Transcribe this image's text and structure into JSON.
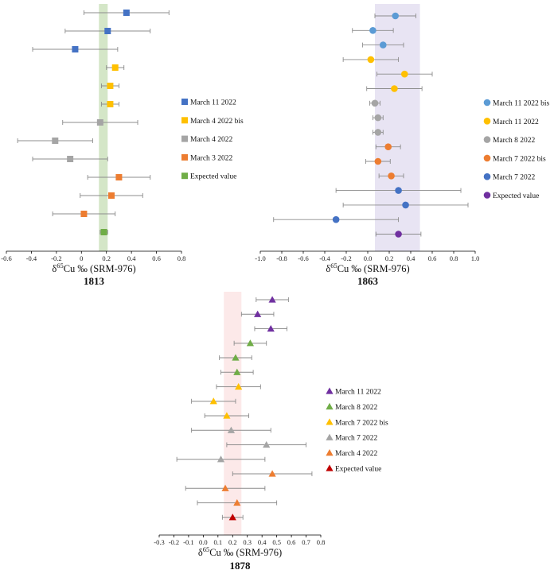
{
  "colors": {
    "blue": "#4472C4",
    "yellow": "#FFC000",
    "grey": "#A5A5A5",
    "orange": "#ED7D31",
    "green": "#70AD47",
    "purple": "#7030A0",
    "red": "#C00000",
    "errorbar": "#8C8C8C",
    "axis": "#000000"
  },
  "chart_data": [
    {
      "type": "scatter",
      "marker": "square",
      "title": "1813",
      "xlabel_prefix": "δ",
      "xlabel_sup": "65",
      "xlabel_rest": "Cu ‰ (SRM-976)",
      "xlim": [
        -0.6,
        0.8
      ],
      "xticks": [
        "-0.6",
        "-0.4",
        "-0.2",
        "0",
        "0.2",
        "0.4",
        "0.6",
        "0.8"
      ],
      "band": {
        "x0": 0.14,
        "x1": 0.21,
        "color": "#70AD47"
      },
      "legend": [
        {
          "label": "March 11 2022",
          "color": "blue"
        },
        {
          "label": "March 4 2022 bis",
          "color": "yellow"
        },
        {
          "label": "March 4 2022",
          "color": "grey"
        },
        {
          "label": "March 3 2022",
          "color": "orange"
        },
        {
          "label": "Expected value",
          "color": "green"
        }
      ],
      "points": [
        {
          "x": 0.36,
          "err": 0.34,
          "color": "blue"
        },
        {
          "x": 0.21,
          "err": 0.34,
          "color": "blue"
        },
        {
          "x": -0.05,
          "err": 0.34,
          "color": "blue"
        },
        {
          "x": 0.27,
          "err": 0.07,
          "color": "yellow"
        },
        {
          "x": 0.23,
          "err": 0.07,
          "color": "yellow"
        },
        {
          "x": 0.23,
          "err": 0.07,
          "color": "yellow"
        },
        {
          "x": 0.15,
          "err": 0.3,
          "color": "grey"
        },
        {
          "x": -0.21,
          "err": 0.3,
          "color": "grey"
        },
        {
          "x": -0.09,
          "err": 0.3,
          "color": "grey"
        },
        {
          "x": 0.3,
          "err": 0.25,
          "color": "orange"
        },
        {
          "x": 0.24,
          "err": 0.25,
          "color": "orange"
        },
        {
          "x": 0.02,
          "err": 0.25,
          "color": "orange"
        },
        {
          "x": 0.18,
          "err": 0.03,
          "color": "green"
        }
      ]
    },
    {
      "type": "scatter",
      "marker": "circle",
      "title": "1863",
      "xlabel_prefix": "δ",
      "xlabel_sup": "65",
      "xlabel_rest": "Cu ‰ (SRM-976)",
      "xlim": [
        -1.0,
        1.1
      ],
      "xticks": [
        "-1.0",
        "-0.8",
        "-0.6",
        "-0.4",
        "-0.2",
        "0.0",
        "0.2",
        "0.4",
        "0.6",
        "0.8",
        "1.0"
      ],
      "band": {
        "x0": 0.12,
        "x1": 0.56,
        "color": "#B4A7D6"
      },
      "legend": [
        {
          "label": "March 11 2022 bis",
          "color": "blue_light"
        },
        {
          "label": "March 11 2022",
          "color": "yellow"
        },
        {
          "label": "March 8 2022",
          "color": "grey"
        },
        {
          "label": "March 7 2022 bis",
          "color": "orange"
        },
        {
          "label": "March 7 2022",
          "color": "blue"
        },
        {
          "label": "Expected value",
          "color": "purple"
        }
      ],
      "points": [
        {
          "x": 0.32,
          "err": 0.2,
          "color": "blue_light"
        },
        {
          "x": 0.1,
          "err": 0.2,
          "color": "blue_light"
        },
        {
          "x": 0.2,
          "err": 0.2,
          "color": "blue_light"
        },
        {
          "x": 0.08,
          "err": 0.27,
          "color": "yellow"
        },
        {
          "x": 0.41,
          "err": 0.27,
          "color": "yellow"
        },
        {
          "x": 0.31,
          "err": 0.27,
          "color": "yellow"
        },
        {
          "x": 0.12,
          "err": 0.05,
          "color": "grey"
        },
        {
          "x": 0.15,
          "err": 0.05,
          "color": "grey"
        },
        {
          "x": 0.15,
          "err": 0.05,
          "color": "grey"
        },
        {
          "x": 0.25,
          "err": 0.12,
          "color": "orange"
        },
        {
          "x": 0.15,
          "err": 0.12,
          "color": "orange"
        },
        {
          "x": 0.28,
          "err": 0.12,
          "color": "orange"
        },
        {
          "x": 0.35,
          "err": 0.61,
          "color": "blue"
        },
        {
          "x": 0.42,
          "err": 0.61,
          "color": "blue"
        },
        {
          "x": -0.26,
          "err": 0.61,
          "color": "blue"
        },
        {
          "x": 0.35,
          "err": 0.22,
          "color": "purple"
        }
      ]
    },
    {
      "type": "scatter",
      "marker": "triangle",
      "title": "1878",
      "xlabel_prefix": "δ",
      "xlabel_sup": "65",
      "xlabel_rest": "Cu ‰ (SRM-976)",
      "xlim": [
        -0.3,
        0.8
      ],
      "xticks": [
        "-0.3",
        "-0.2",
        "-0.1",
        "0.0",
        "0.1",
        "0.2",
        "0.3",
        "0.4",
        "0.5",
        "0.6",
        "0.7",
        "0.8"
      ],
      "band": {
        "x0": 0.14,
        "x1": 0.26,
        "color": "#F4B6B6"
      },
      "legend": [
        {
          "label": "March 11 2022",
          "color": "purple"
        },
        {
          "label": "March 8 2022",
          "color": "green"
        },
        {
          "label": "March 7 2022 bis",
          "color": "yellow"
        },
        {
          "label": "March 7 2022",
          "color": "grey"
        },
        {
          "label": "March 4 2022",
          "color": "orange"
        },
        {
          "label": "Expected value",
          "color": "red"
        }
      ],
      "points": [
        {
          "x": 0.47,
          "err": 0.11,
          "color": "purple"
        },
        {
          "x": 0.37,
          "err": 0.11,
          "color": "purple"
        },
        {
          "x": 0.46,
          "err": 0.11,
          "color": "purple"
        },
        {
          "x": 0.32,
          "err": 0.11,
          "color": "green"
        },
        {
          "x": 0.22,
          "err": 0.11,
          "color": "green"
        },
        {
          "x": 0.23,
          "err": 0.11,
          "color": "green"
        },
        {
          "x": 0.24,
          "err": 0.15,
          "color": "yellow"
        },
        {
          "x": 0.07,
          "err": 0.15,
          "color": "yellow"
        },
        {
          "x": 0.16,
          "err": 0.15,
          "color": "yellow"
        },
        {
          "x": 0.19,
          "err": 0.27,
          "color": "grey"
        },
        {
          "x": 0.43,
          "err": 0.27,
          "color": "grey"
        },
        {
          "x": 0.12,
          "err": 0.3,
          "color": "grey"
        },
        {
          "x": 0.47,
          "err": 0.27,
          "color": "orange"
        },
        {
          "x": 0.15,
          "err": 0.27,
          "color": "orange"
        },
        {
          "x": 0.23,
          "err": 0.27,
          "color": "orange"
        },
        {
          "x": 0.2,
          "err": 0.07,
          "color": "red"
        }
      ]
    }
  ]
}
